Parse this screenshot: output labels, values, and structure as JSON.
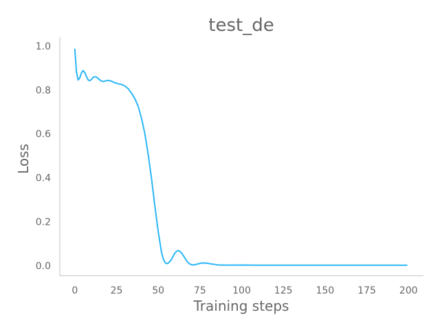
{
  "chart_data": {
    "type": "line",
    "title": "test_de",
    "xlabel": "Training steps",
    "ylabel": "Loss",
    "xlim": [
      -9,
      209
    ],
    "ylim": [
      -0.045,
      1.04
    ],
    "xticks": [
      0,
      25,
      50,
      75,
      100,
      125,
      150,
      175,
      200
    ],
    "xtick_labels": [
      "0",
      "25",
      "50",
      "75",
      "100",
      "125",
      "150",
      "175",
      "200"
    ],
    "yticks": [
      0.0,
      0.2,
      0.4,
      0.6,
      0.8,
      1.0
    ],
    "ytick_labels": [
      "0.0",
      "0.2",
      "0.4",
      "0.6",
      "0.8",
      "1.0"
    ],
    "grid": false,
    "series": [
      {
        "color": "#29b6f6",
        "x": [
          0,
          1,
          2,
          3,
          4,
          5,
          6,
          7,
          8,
          9,
          10,
          11,
          12,
          13,
          14,
          15,
          16,
          17,
          18,
          19,
          20,
          22,
          24,
          26,
          28,
          30,
          32,
          34,
          36,
          38,
          40,
          42,
          44,
          46,
          48,
          50,
          52,
          53,
          54,
          55,
          56,
          57,
          58,
          59,
          60,
          61,
          62,
          63,
          64,
          65,
          66,
          67,
          68,
          69,
          70,
          71,
          72,
          73,
          74,
          75,
          76,
          77,
          78,
          80,
          82,
          84,
          86,
          88,
          90,
          92,
          95,
          100,
          105,
          110,
          120,
          130,
          140,
          150,
          160,
          170,
          180,
          190,
          199
        ],
        "y": [
          0.985,
          0.88,
          0.845,
          0.855,
          0.878,
          0.888,
          0.878,
          0.86,
          0.845,
          0.842,
          0.848,
          0.857,
          0.86,
          0.858,
          0.852,
          0.845,
          0.84,
          0.838,
          0.84,
          0.842,
          0.843,
          0.84,
          0.832,
          0.828,
          0.825,
          0.818,
          0.805,
          0.785,
          0.76,
          0.725,
          0.67,
          0.6,
          0.505,
          0.395,
          0.27,
          0.155,
          0.06,
          0.032,
          0.015,
          0.01,
          0.012,
          0.02,
          0.03,
          0.045,
          0.058,
          0.066,
          0.069,
          0.066,
          0.058,
          0.047,
          0.035,
          0.023,
          0.014,
          0.008,
          0.005,
          0.004,
          0.005,
          0.007,
          0.009,
          0.011,
          0.0125,
          0.0128,
          0.0125,
          0.011,
          0.008,
          0.006,
          0.004,
          0.0035,
          0.003,
          0.003,
          0.003,
          0.0035,
          0.003,
          0.0025,
          0.0025,
          0.0025,
          0.0025,
          0.0025,
          0.0025,
          0.0025,
          0.0025,
          0.0025,
          0.0025
        ]
      }
    ]
  }
}
